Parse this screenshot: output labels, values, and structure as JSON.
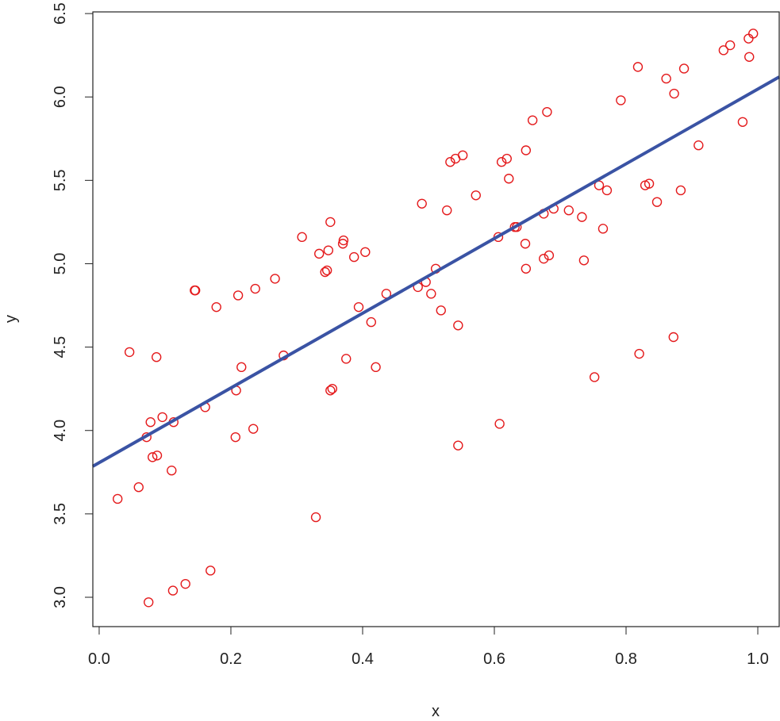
{
  "chart_data": {
    "type": "scatter",
    "title": "",
    "xlabel": "x",
    "ylabel": "y",
    "xlim": [
      -0.0096,
      1.0325
    ],
    "ylim": [
      2.824,
      6.51
    ],
    "xticks": [
      0.0,
      0.2,
      0.4,
      0.6,
      0.8,
      1.0
    ],
    "xtick_labels": [
      "0.0",
      "0.2",
      "0.4",
      "0.6",
      "0.8",
      "1.0"
    ],
    "yticks": [
      3.0,
      3.5,
      4.0,
      4.5,
      5.0,
      5.5,
      6.0,
      6.5
    ],
    "ytick_labels": [
      "3.0",
      "3.5",
      "4.0",
      "4.5",
      "5.0",
      "5.5",
      "6.0",
      "6.5"
    ],
    "grid": false,
    "point_color": "#e41a1c",
    "line_color": "#3a53a4",
    "fit_line": {
      "intercept": 3.807,
      "slope": 2.24
    },
    "points": [
      [
        0.028,
        3.59
      ],
      [
        0.06,
        3.66
      ],
      [
        0.046,
        4.47
      ],
      [
        0.087,
        4.44
      ],
      [
        0.072,
        3.96
      ],
      [
        0.078,
        4.05
      ],
      [
        0.096,
        4.08
      ],
      [
        0.113,
        4.05
      ],
      [
        0.081,
        3.84
      ],
      [
        0.088,
        3.85
      ],
      [
        0.11,
        3.76
      ],
      [
        0.075,
        2.97
      ],
      [
        0.112,
        3.04
      ],
      [
        0.131,
        3.08
      ],
      [
        0.169,
        3.16
      ],
      [
        0.145,
        4.84
      ],
      [
        0.146,
        4.84
      ],
      [
        0.178,
        4.74
      ],
      [
        0.161,
        4.14
      ],
      [
        0.211,
        4.81
      ],
      [
        0.216,
        4.38
      ],
      [
        0.208,
        4.24
      ],
      [
        0.207,
        3.96
      ],
      [
        0.237,
        4.85
      ],
      [
        0.234,
        4.01
      ],
      [
        0.267,
        4.91
      ],
      [
        0.28,
        4.45
      ],
      [
        0.308,
        5.16
      ],
      [
        0.329,
        3.48
      ],
      [
        0.334,
        5.06
      ],
      [
        0.351,
        5.25
      ],
      [
        0.348,
        5.08
      ],
      [
        0.343,
        4.95
      ],
      [
        0.346,
        4.96
      ],
      [
        0.371,
        5.14
      ],
      [
        0.37,
        5.12
      ],
      [
        0.387,
        5.04
      ],
      [
        0.404,
        5.07
      ],
      [
        0.394,
        4.74
      ],
      [
        0.351,
        4.24
      ],
      [
        0.354,
        4.25
      ],
      [
        0.375,
        4.43
      ],
      [
        0.413,
        4.65
      ],
      [
        0.42,
        4.38
      ],
      [
        0.436,
        4.82
      ],
      [
        0.484,
        4.86
      ],
      [
        0.496,
        4.89
      ],
      [
        0.504,
        4.82
      ],
      [
        0.511,
        4.97
      ],
      [
        0.519,
        4.72
      ],
      [
        0.545,
        4.63
      ],
      [
        0.49,
        5.36
      ],
      [
        0.528,
        5.32
      ],
      [
        0.533,
        5.61
      ],
      [
        0.541,
        5.63
      ],
      [
        0.552,
        5.65
      ],
      [
        0.572,
        5.41
      ],
      [
        0.545,
        3.91
      ],
      [
        0.608,
        4.04
      ],
      [
        0.606,
        5.16
      ],
      [
        0.611,
        5.61
      ],
      [
        0.619,
        5.63
      ],
      [
        0.622,
        5.51
      ],
      [
        0.631,
        5.22
      ],
      [
        0.634,
        5.22
      ],
      [
        0.647,
        5.12
      ],
      [
        0.648,
        4.97
      ],
      [
        0.648,
        5.68
      ],
      [
        0.658,
        5.86
      ],
      [
        0.68,
        5.91
      ],
      [
        0.675,
        5.3
      ],
      [
        0.69,
        5.33
      ],
      [
        0.675,
        5.03
      ],
      [
        0.683,
        5.05
      ],
      [
        0.713,
        5.32
      ],
      [
        0.733,
        5.28
      ],
      [
        0.736,
        5.02
      ],
      [
        0.752,
        4.32
      ],
      [
        0.759,
        5.47
      ],
      [
        0.771,
        5.44
      ],
      [
        0.765,
        5.21
      ],
      [
        0.792,
        5.98
      ],
      [
        0.818,
        6.18
      ],
      [
        0.82,
        4.46
      ],
      [
        0.829,
        5.47
      ],
      [
        0.835,
        5.48
      ],
      [
        0.847,
        5.37
      ],
      [
        0.861,
        6.11
      ],
      [
        0.873,
        6.02
      ],
      [
        0.888,
        6.17
      ],
      [
        0.872,
        4.56
      ],
      [
        0.883,
        5.44
      ],
      [
        0.91,
        5.71
      ],
      [
        0.948,
        6.28
      ],
      [
        0.958,
        6.31
      ],
      [
        0.986,
        6.35
      ],
      [
        0.993,
        6.38
      ],
      [
        0.987,
        6.24
      ],
      [
        0.977,
        5.85
      ]
    ]
  }
}
